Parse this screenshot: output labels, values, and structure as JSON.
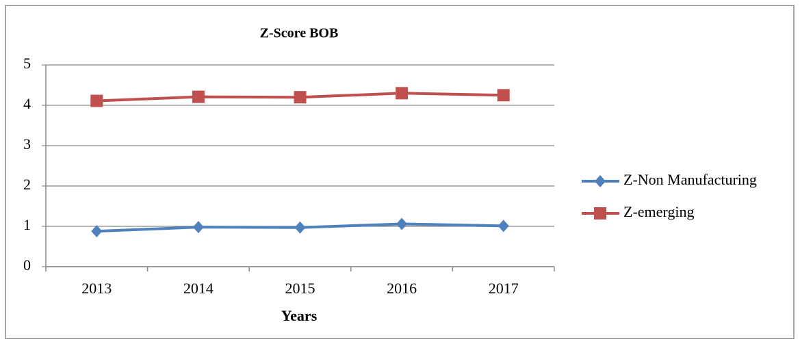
{
  "chart_data": {
    "type": "line",
    "title": "Z-Score BOB",
    "x_label": "Years",
    "categories": [
      "2013",
      "2014",
      "2015",
      "2016",
      "2017"
    ],
    "series": [
      {
        "name": "Z-Non Manufacturing",
        "color": "#4f81bd",
        "marker": "diamond",
        "values": [
          0.88,
          0.98,
          0.97,
          1.06,
          1.01
        ]
      },
      {
        "name": "Z-emerging",
        "color": "#c0504d",
        "marker": "square",
        "values": [
          4.11,
          4.21,
          4.2,
          4.3,
          4.25
        ]
      }
    ],
    "ylim": [
      0,
      5
    ],
    "yticks": [
      0,
      1,
      2,
      3,
      4,
      5
    ],
    "grid": true,
    "legend": "right"
  }
}
